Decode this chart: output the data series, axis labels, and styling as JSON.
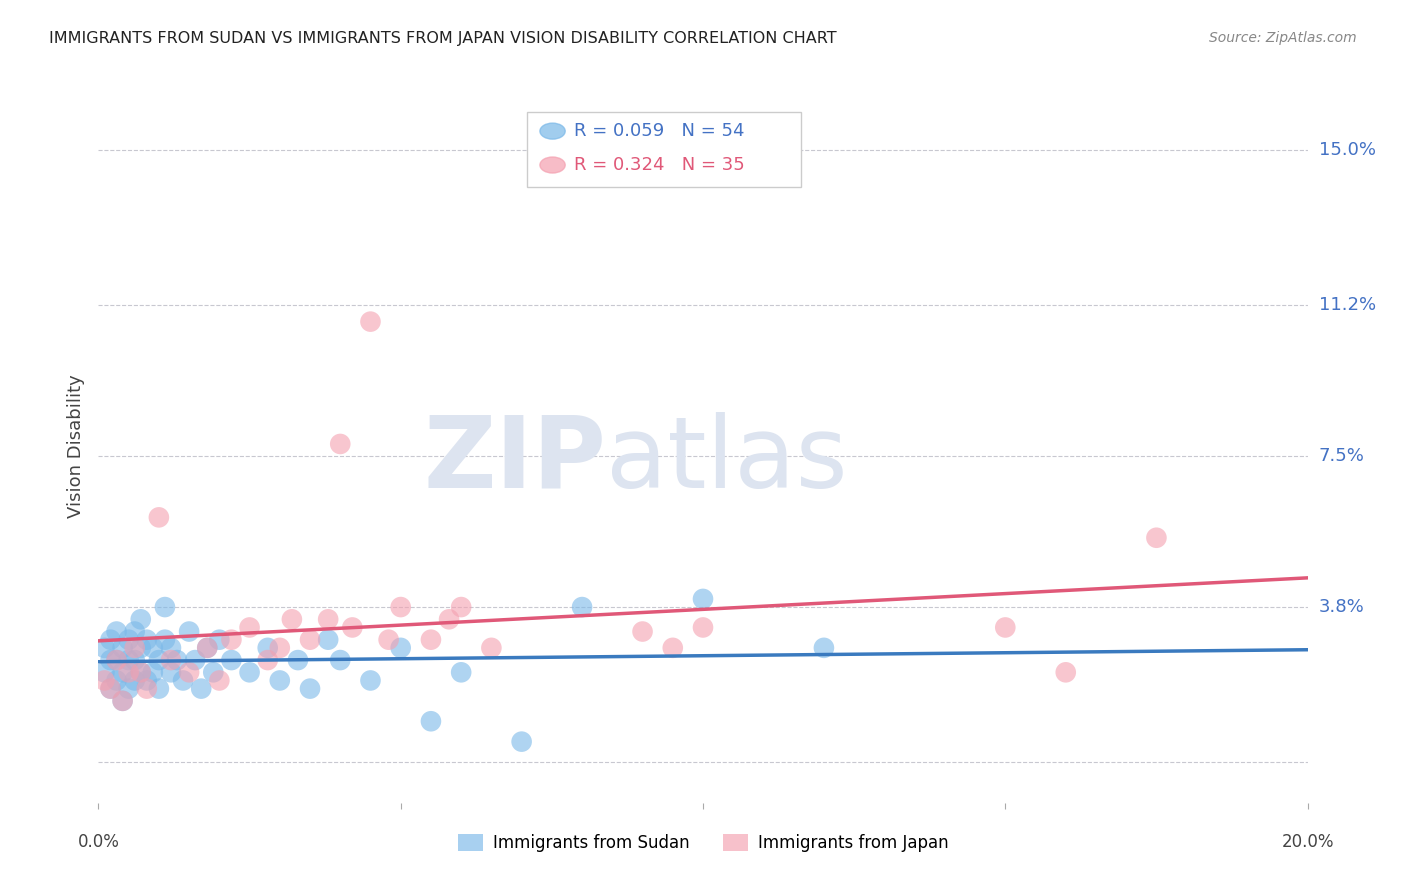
{
  "title": "IMMIGRANTS FROM SUDAN VS IMMIGRANTS FROM JAPAN VISION DISABILITY CORRELATION CHART",
  "source": "Source: ZipAtlas.com",
  "ylabel": "Vision Disability",
  "xlim": [
    0.0,
    0.2
  ],
  "ylim": [
    -0.01,
    0.165
  ],
  "yticks": [
    0.0,
    0.038,
    0.075,
    0.112,
    0.15
  ],
  "ytick_labels": [
    "",
    "3.8%",
    "7.5%",
    "11.2%",
    "15.0%"
  ],
  "xticks": [
    0.0,
    0.05,
    0.1,
    0.15,
    0.2
  ],
  "sudan_R": 0.059,
  "sudan_N": 54,
  "japan_R": 0.324,
  "japan_N": 35,
  "sudan_color": "#7ab8e8",
  "japan_color": "#f4a0b0",
  "sudan_line_color": "#3a7abf",
  "japan_line_color": "#e05878",
  "legend_sudan_label": "Immigrants from Sudan",
  "legend_japan_label": "Immigrants from Japan",
  "sudan_points_x": [
    0.001,
    0.001,
    0.002,
    0.002,
    0.002,
    0.003,
    0.003,
    0.003,
    0.004,
    0.004,
    0.004,
    0.005,
    0.005,
    0.005,
    0.006,
    0.006,
    0.006,
    0.007,
    0.007,
    0.007,
    0.008,
    0.008,
    0.009,
    0.009,
    0.01,
    0.01,
    0.011,
    0.011,
    0.012,
    0.012,
    0.013,
    0.014,
    0.015,
    0.016,
    0.017,
    0.018,
    0.019,
    0.02,
    0.022,
    0.025,
    0.028,
    0.03,
    0.033,
    0.035,
    0.038,
    0.04,
    0.045,
    0.05,
    0.055,
    0.06,
    0.07,
    0.08,
    0.1,
    0.12
  ],
  "sudan_points_y": [
    0.022,
    0.028,
    0.018,
    0.025,
    0.03,
    0.02,
    0.025,
    0.032,
    0.015,
    0.022,
    0.028,
    0.018,
    0.025,
    0.03,
    0.02,
    0.025,
    0.032,
    0.022,
    0.028,
    0.035,
    0.02,
    0.03,
    0.022,
    0.028,
    0.018,
    0.025,
    0.03,
    0.038,
    0.022,
    0.028,
    0.025,
    0.02,
    0.032,
    0.025,
    0.018,
    0.028,
    0.022,
    0.03,
    0.025,
    0.022,
    0.028,
    0.02,
    0.025,
    0.018,
    0.03,
    0.025,
    0.02,
    0.028,
    0.01,
    0.022,
    0.005,
    0.038,
    0.04,
    0.028
  ],
  "japan_points_x": [
    0.001,
    0.002,
    0.003,
    0.004,
    0.005,
    0.006,
    0.007,
    0.008,
    0.01,
    0.012,
    0.015,
    0.018,
    0.02,
    0.022,
    0.025,
    0.028,
    0.03,
    0.032,
    0.035,
    0.038,
    0.04,
    0.042,
    0.045,
    0.048,
    0.05,
    0.055,
    0.058,
    0.06,
    0.065,
    0.09,
    0.095,
    0.1,
    0.15,
    0.16,
    0.175
  ],
  "japan_points_y": [
    0.02,
    0.018,
    0.025,
    0.015,
    0.022,
    0.028,
    0.022,
    0.018,
    0.06,
    0.025,
    0.022,
    0.028,
    0.02,
    0.03,
    0.033,
    0.025,
    0.028,
    0.035,
    0.03,
    0.035,
    0.078,
    0.033,
    0.108,
    0.03,
    0.038,
    0.03,
    0.035,
    0.038,
    0.028,
    0.032,
    0.028,
    0.033,
    0.033,
    0.022,
    0.055
  ]
}
